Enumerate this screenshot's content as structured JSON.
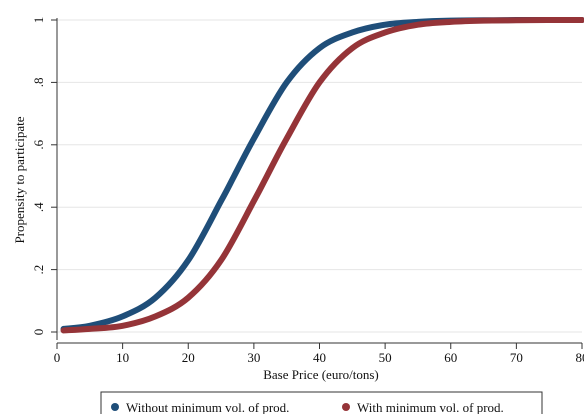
{
  "chart_data": {
    "type": "line",
    "xlabel": "Base Price (euro/tons)",
    "ylabel": "Propensity to participate",
    "xlim": [
      0,
      80
    ],
    "ylim": [
      0,
      1
    ],
    "x_ticks": [
      0,
      10,
      20,
      30,
      40,
      50,
      60,
      70,
      80
    ],
    "x_tick_labels": [
      "0",
      "10",
      "20",
      "30",
      "40",
      "50",
      "60",
      "70",
      "80"
    ],
    "y_ticks": [
      0,
      0.2,
      0.4,
      0.6,
      0.8,
      1
    ],
    "y_tick_labels": [
      "0",
      ".2",
      ".4",
      ".6",
      ".8",
      "1"
    ],
    "grid": "horizontal",
    "legend_position": "bottom",
    "series": [
      {
        "name": "Without minimum vol. of prod.",
        "color": "#1f4e79",
        "x": [
          1,
          5,
          10,
          15,
          20,
          25,
          27,
          30,
          35,
          40,
          45,
          50,
          55,
          60,
          65,
          70,
          75,
          80
        ],
        "y": [
          0.01,
          0.02,
          0.05,
          0.11,
          0.23,
          0.42,
          0.5,
          0.62,
          0.8,
          0.91,
          0.96,
          0.985,
          0.994,
          0.998,
          0.999,
          1,
          1,
          1
        ]
      },
      {
        "name": "With minimum vol. of prod.",
        "color": "#953438",
        "x": [
          1,
          5,
          10,
          15,
          20,
          25,
          30,
          32,
          35,
          40,
          45,
          50,
          55,
          60,
          65,
          70,
          75,
          80
        ],
        "y": [
          0.005,
          0.01,
          0.02,
          0.05,
          0.11,
          0.23,
          0.42,
          0.5,
          0.62,
          0.8,
          0.91,
          0.96,
          0.985,
          0.994,
          0.998,
          0.999,
          1,
          1
        ]
      }
    ]
  }
}
